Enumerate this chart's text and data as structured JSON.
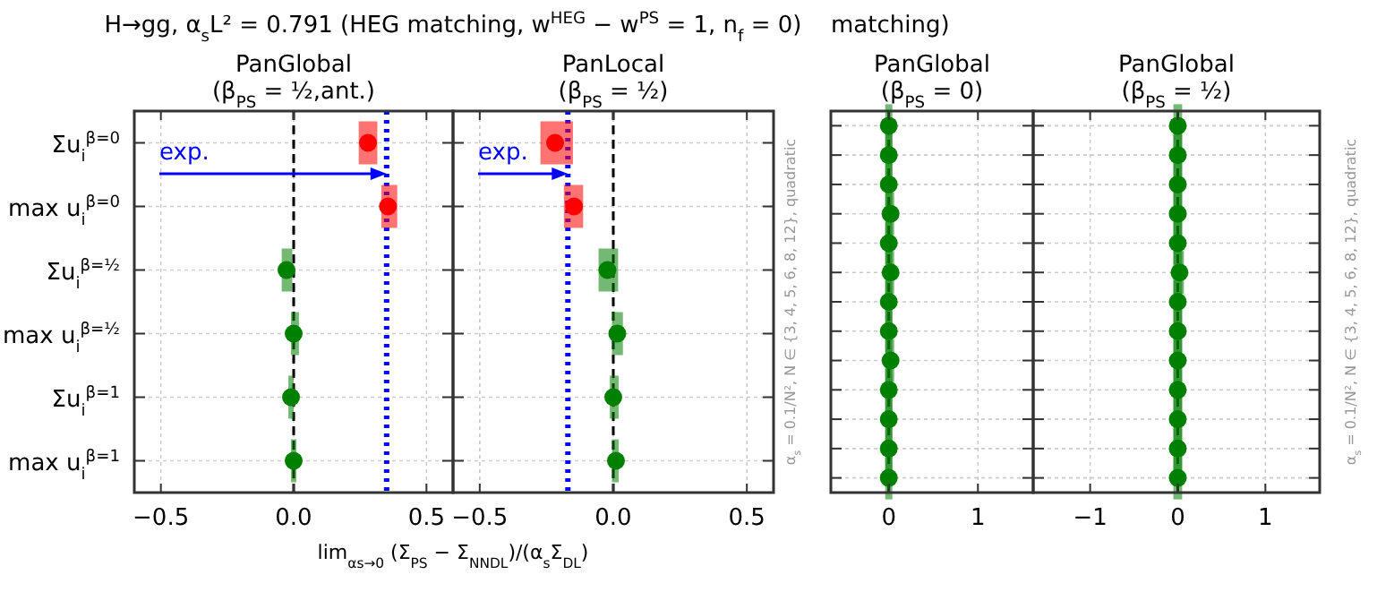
{
  "chart_data": [
    {
      "type": "scatter",
      "orientation": "horizontal",
      "title": "H→gg, α$_{s}$L² = 0.791 (HEG matching, w$^{HEG}$ − w$^{PS}$ = 1, n$_{f}$ = 0)",
      "subtitle": "PanGlobal\n(β$_{PS}$ = ½,ant.)",
      "xlabel": "lim$_{αs→0}$ (Σ$_{PS}$ − Σ$_{NNDL}$)/(α$_{s}$Σ$_{DL}$)",
      "categories": [
        "Σu$_{i}$$^{β=0}$",
        "max u$_{i}$$^{β=0}$",
        "Σu$_{i}$$^{β=½}$",
        "max u$_{i}$$^{β=½}$",
        "Σu$_{i}$$^{β=1}$",
        "max u$_{i}$$^{β=1}$"
      ],
      "series": [
        {
          "color": "#ff0000",
          "values": [
            0.28,
            0.355,
            null,
            null,
            null,
            null
          ],
          "errors": [
            [
              0.245,
              0.315
            ],
            [
              0.33,
              0.39
            ],
            null,
            null,
            null,
            null
          ]
        },
        {
          "color": "#008000",
          "values": [
            null,
            null,
            -0.027,
            0.0,
            -0.01,
            0.0
          ],
          "errors": [
            null,
            null,
            [
              -0.045,
              -0.005
            ],
            [
              -0.01,
              0.02
            ],
            [
              -0.02,
              0.0
            ],
            [
              -0.01,
              0.01
            ]
          ]
        }
      ],
      "xlim": [
        -0.6,
        0.6
      ],
      "xticks": [
        {
          "value": -0.5,
          "label": "−0.5"
        },
        {
          "value": 0,
          "label": "0.0"
        },
        0.5
      ],
      "ref_lines": [
        {
          "axis": "x",
          "value": 0,
          "color": "#000000",
          "line_style": "dashed"
        },
        {
          "axis": "x",
          "value": 0.35,
          "label": "exp.",
          "color": "#0000ff",
          "line_style": "dotted"
        }
      ],
      "grid": true,
      "marker": "circle"
    },
    {
      "type": "scatter",
      "orientation": "horizontal",
      "subtitle": "PanLocal\n(β$_{PS}$ = ½)",
      "categories": [
        null,
        null,
        null,
        null,
        null,
        null
      ],
      "series": [
        {
          "color": "#ff0000",
          "values": [
            -0.218,
            -0.147,
            null,
            null,
            null,
            null
          ],
          "errors": [
            [
              -0.273,
              -0.151
            ],
            [
              -0.185,
              -0.113
            ],
            null,
            null,
            null,
            null
          ]
        },
        {
          "color": "#008000",
          "values": [
            null,
            null,
            -0.022,
            0.015,
            0.0,
            0.01
          ],
          "errors": [
            null,
            null,
            [
              -0.055,
              0.018
            ],
            [
              -0.005,
              0.036
            ],
            [
              -0.013,
              0.02
            ],
            [
              -0.005,
              0.02
            ]
          ]
        }
      ],
      "xlim": [
        -0.6,
        0.6
      ],
      "xticks": [
        {
          "value": -0.5,
          "label": "−0.5"
        },
        {
          "value": 0,
          "label": "0.0"
        },
        0.5
      ],
      "ref_lines": [
        {
          "axis": "x",
          "value": 0,
          "color": "#000000",
          "line_style": "dashed"
        },
        {
          "axis": "x",
          "value": -0.17,
          "label": "exp.",
          "color": "#0000ff",
          "line_style": "dotted"
        }
      ],
      "grid": true,
      "marker": "circle",
      "tick_labels": "x"
    },
    {
      "type": "scatter",
      "orientation": "horizontal",
      "title": "matching)",
      "subtitle": "PanGlobal\n(β$_{PS}$ = 0)",
      "ylabel": "α$_{s}$ = 0.1/N², N ∈ {3, 4, 5, 6, 8, 12}, quadratic",
      "categories": [
        null,
        null,
        null,
        null,
        null,
        null,
        null,
        null,
        null,
        null,
        null,
        null,
        null
      ],
      "series": [
        {
          "color": "#008000",
          "values": [
            0,
            0,
            0,
            0.02,
            0,
            0.02,
            0,
            0,
            0.02,
            0,
            0,
            0,
            0
          ],
          "errors": [
            [
              -0.04,
              0.04
            ],
            [
              -0.04,
              0.04
            ],
            [
              -0.04,
              0.04
            ],
            [
              -0.04,
              0.06
            ],
            [
              -0.04,
              0.04
            ],
            [
              -0.04,
              0.06
            ],
            [
              -0.04,
              0.04
            ],
            [
              -0.04,
              0.04
            ],
            [
              -0.04,
              0.06
            ],
            [
              -0.04,
              0.04
            ],
            [
              -0.04,
              0.04
            ],
            [
              -0.04,
              0.04
            ],
            [
              -0.04,
              0.04
            ]
          ]
        }
      ],
      "xlim": [
        -0.65,
        1.62
      ],
      "xticks": [
        0,
        1
      ],
      "ref_lines": [
        {
          "axis": "x",
          "value": 0,
          "color": "#000000",
          "line_style": "dashed"
        }
      ],
      "grid": true,
      "marker": "circle",
      "tick_labels": "x"
    },
    {
      "type": "scatter",
      "orientation": "horizontal",
      "subtitle": "PanGlobal\n(β$_{PS}$ = ½)",
      "y2label": "α$_{s}$ = 0.1/N², N ∈ {3, 4, 5, 6, 8, 12}, quadratic",
      "categories": [
        null,
        null,
        null,
        null,
        null,
        null,
        null,
        null,
        null,
        null,
        null,
        null,
        null
      ],
      "series": [
        {
          "color": "#008000",
          "values": [
            0,
            0,
            0,
            0,
            0,
            0.02,
            0,
            0,
            0,
            0,
            0,
            0,
            0
          ],
          "errors": [
            [
              -0.05,
              0.05
            ],
            [
              -0.05,
              0.05
            ],
            [
              -0.05,
              0.05
            ],
            [
              -0.05,
              0.05
            ],
            [
              -0.05,
              0.05
            ],
            [
              -0.05,
              0.07
            ],
            [
              -0.05,
              0.05
            ],
            [
              -0.05,
              0.05
            ],
            [
              -0.05,
              0.05
            ],
            [
              -0.05,
              0.05
            ],
            [
              -0.05,
              0.05
            ],
            [
              -0.05,
              0.05
            ],
            [
              -0.05,
              0.05
            ]
          ]
        }
      ],
      "xlim": [
        -1.65,
        1.62
      ],
      "xticks": [
        {
          "value": -1,
          "label": "−1"
        },
        0,
        1
      ],
      "ref_lines": [
        {
          "axis": "x",
          "value": 0,
          "color": "#000000",
          "line_style": "dashed"
        }
      ],
      "grid": true,
      "marker": "circle",
      "tick_labels": "x"
    }
  ]
}
